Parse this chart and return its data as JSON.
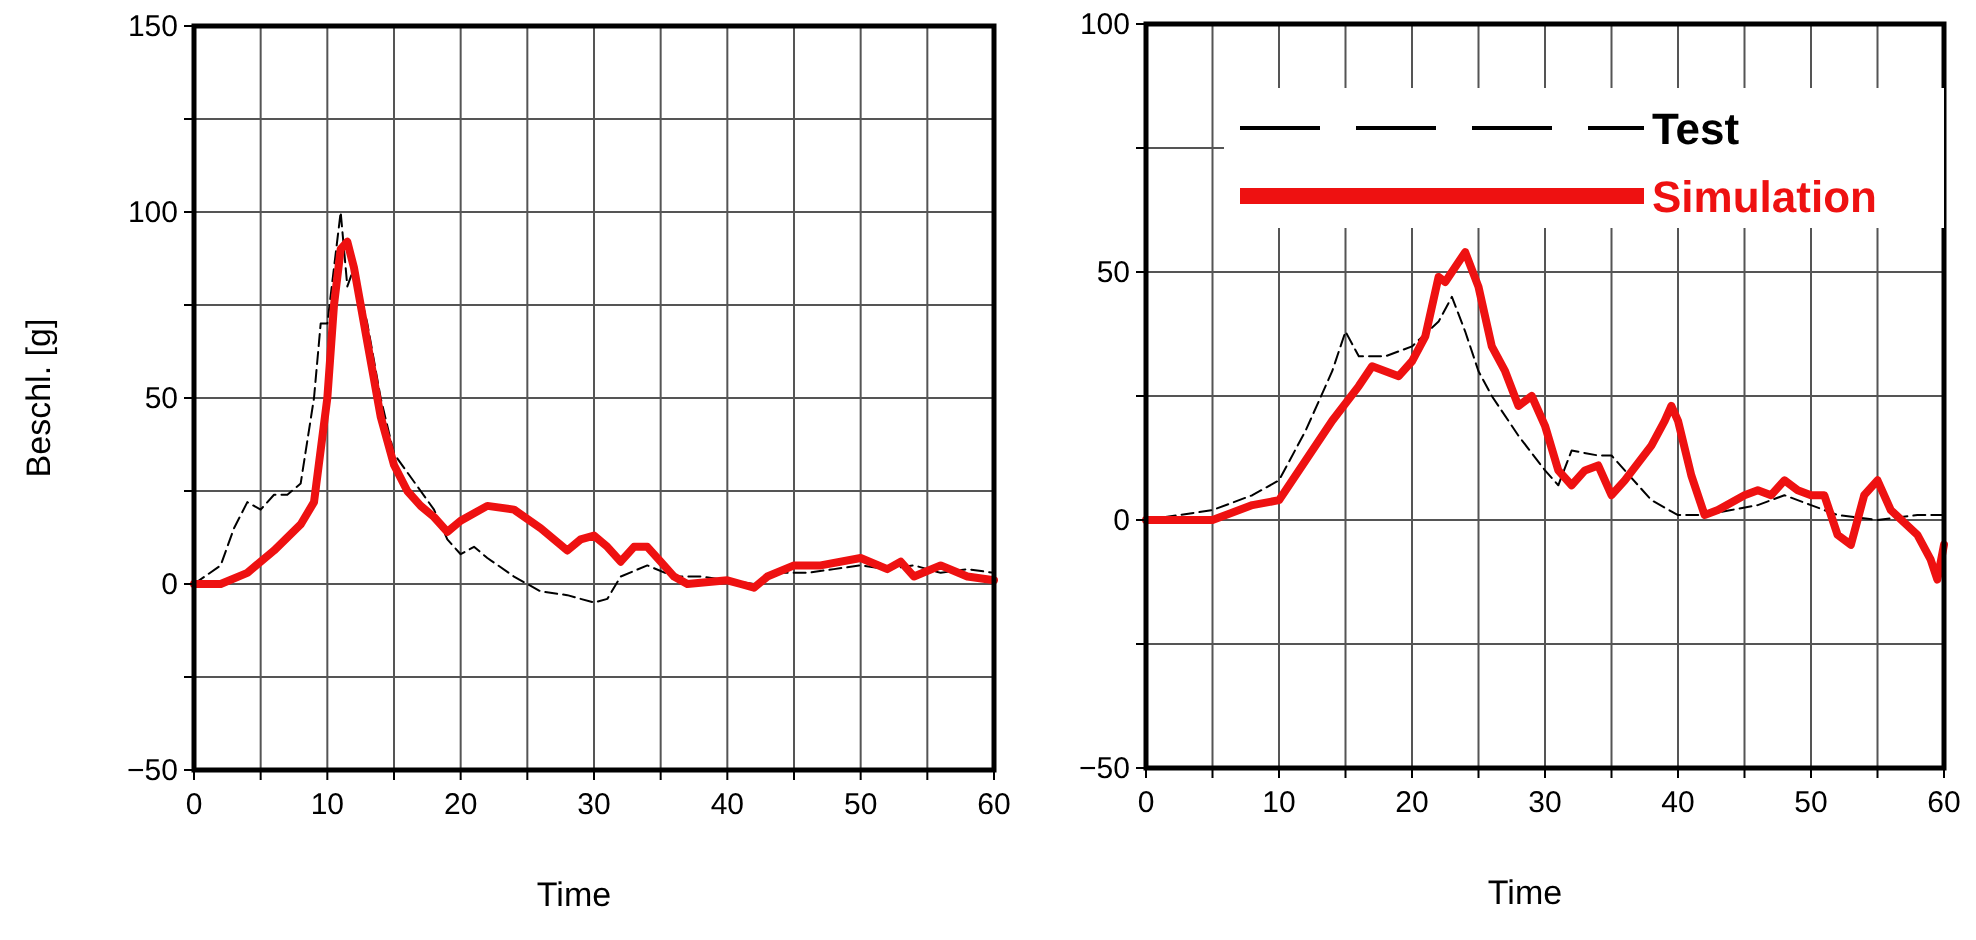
{
  "chart_data": [
    {
      "type": "line",
      "xlabel": "Time",
      "ylabel": "Beschl. [g]",
      "xlim": [
        0,
        60
      ],
      "ylim": [
        -50,
        150
      ],
      "xticks": [
        0,
        {
          "value": 5,
          "label": null
        },
        10,
        {
          "value": 15,
          "label": null
        },
        20,
        {
          "value": 25,
          "label": null
        },
        30,
        {
          "value": 35,
          "label": null
        },
        40,
        {
          "value": 45,
          "label": null
        },
        50,
        {
          "value": 55,
          "label": null
        },
        60
      ],
      "yticks": [
        -50,
        {
          "value": -25,
          "label": null
        },
        0,
        {
          "value": 25,
          "label": null
        },
        50,
        {
          "value": 75,
          "label": null
        },
        100,
        {
          "value": 125,
          "label": null
        },
        150
      ],
      "grid": true,
      "legend": false,
      "series": [
        {
          "color": "#000000",
          "line_style": "dashed",
          "x": [
            0,
            2,
            3,
            4,
            5,
            6,
            7,
            8,
            9,
            9.5,
            10,
            10.5,
            11,
            11.5,
            12,
            13,
            14,
            15,
            16,
            17,
            18,
            19,
            20,
            21,
            22,
            24,
            26,
            28,
            30,
            31,
            32,
            34,
            36,
            38,
            40,
            42,
            44,
            46,
            48,
            50,
            52,
            54,
            56,
            58,
            60
          ],
          "values": [
            0,
            5,
            15,
            22,
            20,
            24,
            24,
            27,
            50,
            70,
            70,
            85,
            100,
            80,
            85,
            70,
            50,
            35,
            30,
            25,
            20,
            12,
            8,
            10,
            7,
            2,
            -2,
            -3,
            -5,
            -4,
            2,
            5,
            2,
            2,
            1,
            0,
            3,
            3,
            4,
            5,
            4,
            5,
            3,
            4,
            3
          ]
        },
        {
          "color": "#ee1111",
          "line_style": "solid",
          "x": [
            0,
            2,
            4,
            6,
            8,
            9,
            10,
            10.5,
            11,
            11.5,
            12,
            13,
            14,
            15,
            16,
            17,
            18,
            19,
            20,
            22,
            24,
            26,
            28,
            29,
            30,
            31,
            32,
            33,
            34,
            35,
            36,
            37,
            40,
            41,
            42,
            43,
            45,
            47,
            50,
            52,
            53,
            54,
            56,
            58,
            60
          ],
          "values": [
            0,
            0,
            3,
            9,
            16,
            22,
            50,
            75,
            90,
            92,
            85,
            65,
            45,
            32,
            25,
            21,
            18,
            14,
            17,
            21,
            20,
            15,
            9,
            12,
            13,
            10,
            6,
            10,
            10,
            6,
            2,
            0,
            1,
            0,
            -1,
            2,
            5,
            5,
            7,
            4,
            6,
            2,
            5,
            2,
            1
          ]
        }
      ]
    },
    {
      "type": "line",
      "xlabel": "Time",
      "xlim": [
        0,
        60
      ],
      "ylim": [
        -50,
        100
      ],
      "xticks": [
        0,
        {
          "value": 5,
          "label": null
        },
        10,
        {
          "value": 15,
          "label": null
        },
        20,
        {
          "value": 25,
          "label": null
        },
        30,
        {
          "value": 35,
          "label": null
        },
        40,
        {
          "value": 45,
          "label": null
        },
        50,
        {
          "value": 55,
          "label": null
        },
        60
      ],
      "yticks": [
        -50,
        {
          "value": -25,
          "label": null
        },
        0,
        {
          "value": 25,
          "label": null
        },
        50,
        {
          "value": 75,
          "label": null
        },
        100
      ],
      "grid": true,
      "legend": "top right",
      "series": [
        {
          "name": "Test",
          "color": "#000000",
          "line_style": "dashed",
          "x": [
            0,
            5,
            8,
            10,
            12,
            14,
            15,
            16,
            18,
            20,
            22,
            23,
            24,
            25,
            26,
            28,
            30,
            31,
            32,
            34,
            35,
            36,
            38,
            40,
            42,
            44,
            46,
            48,
            50,
            52,
            55,
            58,
            60
          ],
          "values": [
            0,
            2,
            5,
            8,
            18,
            30,
            38,
            33,
            33,
            35,
            40,
            45,
            38,
            30,
            25,
            17,
            10,
            7,
            14,
            13,
            13,
            10,
            4,
            1,
            1,
            2,
            3,
            5,
            3,
            1,
            0,
            1,
            1
          ]
        },
        {
          "name": "Simulation",
          "color": "#ee1111",
          "line_style": "solid",
          "x": [
            0,
            5,
            8,
            10,
            12,
            14,
            16,
            17,
            18,
            19,
            20,
            21,
            22,
            22.5,
            23,
            24,
            25,
            26,
            27,
            28,
            29,
            30,
            31,
            32,
            33,
            34,
            35,
            36,
            38,
            39,
            39.5,
            40,
            41,
            42,
            43,
            45,
            46,
            47,
            48,
            49,
            50,
            51,
            52,
            53,
            54,
            55,
            56,
            58,
            59,
            59.5,
            60
          ],
          "values": [
            0,
            0,
            3,
            4,
            12,
            20,
            27,
            31,
            30,
            29,
            32,
            37,
            49,
            48,
            50,
            54,
            47,
            35,
            30,
            23,
            25,
            19,
            10,
            7,
            10,
            11,
            5,
            8,
            15,
            20,
            23,
            20,
            9,
            1,
            2,
            5,
            6,
            5,
            8,
            6,
            5,
            5,
            -3,
            -5,
            5,
            8,
            2,
            -3,
            -8,
            -12,
            -5
          ]
        }
      ]
    }
  ]
}
